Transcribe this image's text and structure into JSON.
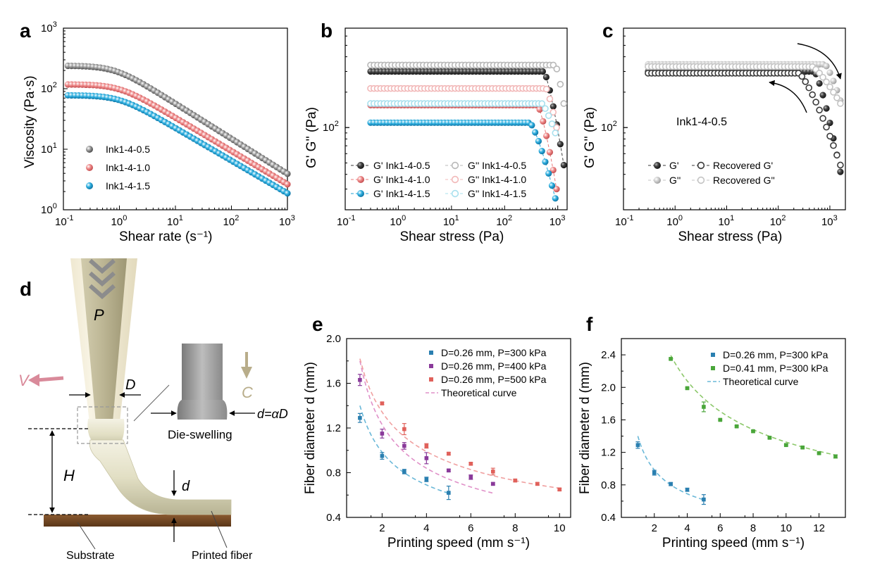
{
  "panel_letters": {
    "a": "a",
    "b": "b",
    "c": "c",
    "d": "d",
    "e": "e",
    "f": "f"
  },
  "colors": {
    "gray": "#6e6e6e",
    "red": "#e8797a",
    "blue": "#1ea0d6",
    "dark": "#3a3a3a",
    "lightgray": "#b8b8b8",
    "pink": "#f2b8b8",
    "lightblue": "#a8e0ee",
    "blue_e": "#2a7fb0",
    "purple": "#8a3a9a",
    "red_e": "#e0615b",
    "green": "#4aa63a",
    "fit_blue": "#6ab8d8",
    "fit_pink": "#e090c8",
    "fit_red": "#f0a0a0",
    "fit_green": "#8cc86a"
  },
  "diagram": {
    "P": "P",
    "V": "V",
    "D": "D",
    "C": "C",
    "d_eq": "d=αD",
    "die_swelling": "Die-swelling",
    "H": "H",
    "d": "d",
    "substrate": "Substrate",
    "printed_fiber": "Printed fiber"
  },
  "chart_data": [
    {
      "id": "a",
      "type": "scatter",
      "xscale": "log",
      "yscale": "log",
      "xlabel": "Shear rate (s⁻¹)",
      "ylabel": "Viscosity (Pa·s)",
      "xlim": [
        0.1,
        1000
      ],
      "ylim": [
        1,
        1000
      ],
      "xticks": [
        {
          "base": "10",
          "exp": "-1"
        },
        {
          "base": "10",
          "exp": "0"
        },
        {
          "base": "10",
          "exp": "1"
        },
        {
          "base": "10",
          "exp": "2"
        },
        {
          "base": "10",
          "exp": "3"
        }
      ],
      "yticks": [
        {
          "base": "10",
          "exp": "0"
        },
        {
          "base": "10",
          "exp": "1"
        },
        {
          "base": "10",
          "exp": "2"
        },
        {
          "base": "10",
          "exp": "3"
        }
      ],
      "legend_position": "lower-left",
      "series": [
        {
          "name": "Ink1-4-0.5",
          "eta0": 240,
          "lambda": 1.2,
          "n": 0.42,
          "color": "#7a7a7a"
        },
        {
          "name": "Ink1-4-1.0",
          "eta0": 118,
          "lambda": 1.0,
          "n": 0.45,
          "color": "#e8797a"
        },
        {
          "name": "Ink1-4-1.5",
          "eta0": 78,
          "lambda": 1.0,
          "n": 0.46,
          "color": "#1ea0d6"
        }
      ]
    },
    {
      "id": "b",
      "type": "scatter",
      "xscale": "log",
      "yscale": "log",
      "xlabel": "Shear stress (Pa)",
      "ylabel": "G' G'' (Pa)",
      "xlim": [
        0.1,
        1500
      ],
      "ylim": [
        20,
        700
      ],
      "xticks": [
        {
          "base": "10",
          "exp": "-1"
        },
        {
          "base": "10",
          "exp": "0"
        },
        {
          "base": "10",
          "exp": "1"
        },
        {
          "base": "10",
          "exp": "2"
        },
        {
          "base": "10",
          "exp": "3"
        }
      ],
      "yticks": [
        {
          "base": "10",
          "exp": "2"
        }
      ],
      "legend_position": "bottom",
      "series": [
        {
          "name": "G' Ink1-4-0.5",
          "plateau": 300,
          "yield": 550,
          "end": 1300,
          "endval": 48,
          "color": "#3a3a3a",
          "open": false,
          "line": true
        },
        {
          "name": "G'' Ink1-4-0.5",
          "plateau": 340,
          "yield": 900,
          "end": 1300,
          "endval": 160,
          "color": "#b8b8b8",
          "open": true,
          "line": false
        },
        {
          "name": "G' Ink1-4-1.0",
          "plateau": 155,
          "yield": 420,
          "end": 950,
          "endval": 30,
          "color": "#e8797a",
          "open": false,
          "line": true
        },
        {
          "name": "G'' Ink1-4-1.0",
          "plateau": 215,
          "yield": 600,
          "end": 950,
          "endval": 100,
          "color": "#f2b8b8",
          "open": true,
          "line": false
        },
        {
          "name": "G' Ink1-4-1.5",
          "plateau": 110,
          "yield": 300,
          "end": 900,
          "endval": 25,
          "color": "#1ea0d6",
          "open": false,
          "line": true
        },
        {
          "name": "G'' Ink1-4-1.5",
          "plateau": 160,
          "yield": 500,
          "end": 900,
          "endval": 90,
          "color": "#a8e0ee",
          "open": true,
          "line": false
        }
      ]
    },
    {
      "id": "c",
      "type": "scatter",
      "xscale": "log",
      "yscale": "log",
      "xlabel": "Shear stress (Pa)",
      "ylabel": "G' G'' (Pa)",
      "xlim": [
        0.1,
        2000
      ],
      "ylim": [
        20,
        700
      ],
      "xticks": [
        {
          "base": "10",
          "exp": "-1"
        },
        {
          "base": "10",
          "exp": "0"
        },
        {
          "base": "10",
          "exp": "1"
        },
        {
          "base": "10",
          "exp": "2"
        },
        {
          "base": "10",
          "exp": "3"
        }
      ],
      "yticks": [
        {
          "base": "10",
          "exp": "2"
        }
      ],
      "annotation": "Ink1-4-0.5",
      "legend_position": "bottom-left",
      "series": [
        {
          "name": "G'",
          "plateau": 300,
          "yield": 500,
          "end": 1600,
          "endval": 42,
          "color": "#3a3a3a",
          "open": false
        },
        {
          "name": "G''",
          "plateau": 345,
          "yield": 800,
          "end": 1600,
          "endval": 170,
          "color": "#c4c4c4",
          "open": false
        },
        {
          "name": "Recovered G'",
          "plateau": 290,
          "yield": 250,
          "end": 1600,
          "endval": 48,
          "color": "#3a3a3a",
          "open": true
        },
        {
          "name": "Recovered G''",
          "plateau": 330,
          "yield": 450,
          "end": 1600,
          "endval": 160,
          "color": "#c4c4c4",
          "open": true
        }
      ]
    },
    {
      "id": "e",
      "type": "scatter-errorbar",
      "xlabel": "Printing speed (mm s⁻¹)",
      "ylabel": "Fiber diameter d (mm)",
      "xlim": [
        0.4,
        10.5
      ],
      "ylim": [
        0.4,
        2.0
      ],
      "xticks": [
        2,
        4,
        6,
        8,
        10
      ],
      "yticks": [
        "0.4",
        "0.8",
        "1.2",
        "1.6",
        "2.0"
      ],
      "legend_position": "top-right",
      "series": [
        {
          "name": "D=0.26 mm, P=300 kPa",
          "color": "#2a7fb0",
          "fit_color": "#6ab8d8",
          "fit_k": 1.4,
          "fit_p": 0.51,
          "fit_x": [
            1,
            5
          ],
          "x": [
            1,
            2,
            3,
            4,
            5
          ],
          "y": [
            1.29,
            0.95,
            0.81,
            0.74,
            0.62
          ],
          "err": [
            0.04,
            0.03,
            0.02,
            0.02,
            0.06
          ]
        },
        {
          "name": "D=0.26 mm, P=400 kPa",
          "color": "#8a3a9a",
          "fit_color": "#e090c8",
          "fit_k": 1.8,
          "fit_p": 0.55,
          "fit_x": [
            1,
            7
          ],
          "x": [
            1,
            2,
            3,
            4,
            5,
            6,
            7
          ],
          "y": [
            1.63,
            1.15,
            1.04,
            0.93,
            0.82,
            0.76,
            0.7
          ],
          "err": [
            0.05,
            0.04,
            0.03,
            0.05,
            0.01,
            0.02,
            0.01
          ]
        },
        {
          "name": "D=0.26 mm, P=500 kPa",
          "color": "#e0615b",
          "fit_color": "#f0a0a0",
          "fit_k": 1.82,
          "fit_p": 0.44,
          "fit_x": [
            1,
            10
          ],
          "x": [
            2,
            3,
            4,
            5,
            6,
            7,
            8,
            9,
            10
          ],
          "y": [
            1.42,
            1.19,
            1.04,
            0.97,
            0.88,
            0.81,
            0.73,
            0.7,
            0.65
          ],
          "err": [
            0.01,
            0.05,
            0.02,
            0.01,
            0.01,
            0.03,
            0.01,
            0.01,
            0.01
          ]
        }
      ],
      "fit_label": "Theoretical curve"
    },
    {
      "id": "f",
      "type": "scatter-errorbar",
      "xlabel": "Printing speed (mm s⁻¹)",
      "ylabel": "Fiber diameter d (mm)",
      "xlim": [
        0,
        13.6
      ],
      "ylim": [
        0.4,
        2.6
      ],
      "xticks": [
        2,
        4,
        6,
        8,
        10,
        12
      ],
      "yticks": [
        "0.4",
        "0.8",
        "1.2",
        "1.6",
        "2.0",
        "2.4"
      ],
      "legend_position": "top-right",
      "series": [
        {
          "name": "D=0.26 mm, P=300 kPa",
          "color": "#2a7fb0",
          "fit_color": "#6ab8d8",
          "fit_k": 1.4,
          "fit_p": 0.51,
          "fit_x": [
            1,
            5
          ],
          "x": [
            1,
            2,
            3,
            4,
            5
          ],
          "y": [
            1.29,
            0.95,
            0.81,
            0.74,
            0.62
          ],
          "err": [
            0.04,
            0.03,
            0.02,
            0.02,
            0.06
          ]
        },
        {
          "name": "D=0.41 mm, P=300 kPa",
          "color": "#4aa63a",
          "fit_color": "#8cc86a",
          "fit_k": 4.1,
          "fit_p": 0.49,
          "fit_x": [
            3,
            13
          ],
          "x": [
            3,
            4,
            5,
            6,
            7,
            8,
            9,
            10,
            11,
            12,
            13
          ],
          "y": [
            2.35,
            1.99,
            1.76,
            1.6,
            1.52,
            1.46,
            1.38,
            1.29,
            1.26,
            1.19,
            1.15
          ],
          "err": [
            0.01,
            0.01,
            0.06,
            0.01,
            0.01,
            0.01,
            0.01,
            0.01,
            0.01,
            0.01,
            0.02
          ]
        }
      ],
      "fit_label": "Theoretical curve",
      "fit_legend_color": "#6ab8d8"
    }
  ]
}
